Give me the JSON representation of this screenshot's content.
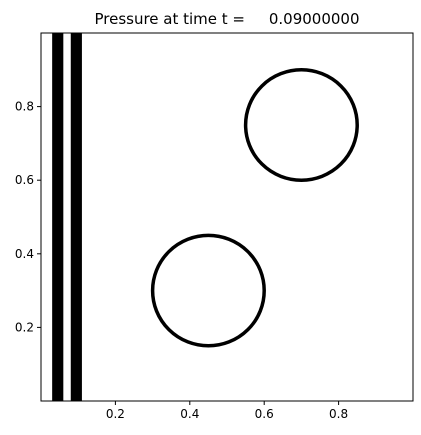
{
  "chart_data": {
    "type": "scatter",
    "title": "Pressure at time t =     0.09000000",
    "xlabel": "",
    "ylabel": "",
    "xlim": [
      0.0,
      1.0
    ],
    "ylim": [
      0.0,
      1.0
    ],
    "xticks": [
      0.2,
      0.4,
      0.6,
      0.8
    ],
    "xtick_labels": [
      "0.2",
      "0.4",
      "0.6",
      "0.8"
    ],
    "yticks": [
      0.2,
      0.4,
      0.6,
      0.8
    ],
    "ytick_labels": [
      "0.2",
      "0.4",
      "0.6",
      "0.8"
    ],
    "grid": false,
    "colors": {
      "ink": "#000000",
      "background": "#ffffff"
    },
    "bands": [
      {
        "x0": 0.03,
        "x1": 0.06
      },
      {
        "x0": 0.08,
        "x1": 0.11
      }
    ],
    "circles": [
      {
        "cx": 0.7,
        "cy": 0.75,
        "r": 0.15
      },
      {
        "cx": 0.45,
        "cy": 0.3,
        "r": 0.15
      }
    ]
  }
}
